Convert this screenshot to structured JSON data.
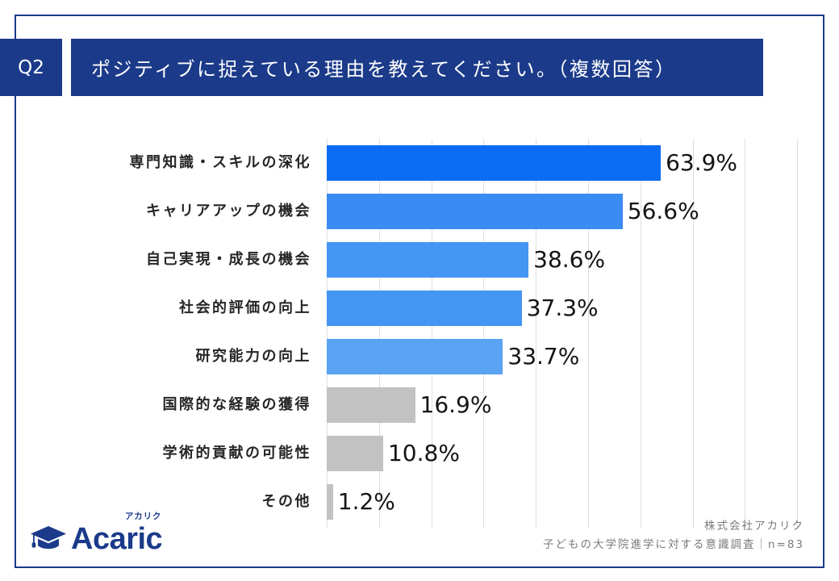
{
  "header": {
    "question_label": "Q2"
  },
  "chart_data": {
    "type": "bar",
    "orientation": "horizontal",
    "title": "ポジティブに捉えている理由を教えてください。（複数回答）",
    "categories": [
      "専門知識・スキルの深化",
      "キャリアアップの機会",
      "自己実現・成長の機会",
      "社会的評価の向上",
      "研究能力の向上",
      "国際的な経験の獲得",
      "学術的貢献の可能性",
      "その他"
    ],
    "values": [
      63.9,
      56.6,
      38.6,
      37.3,
      33.7,
      16.9,
      10.8,
      1.2
    ],
    "value_labels": [
      "63.9%",
      "56.6%",
      "38.6%",
      "37.3%",
      "33.7%",
      "16.9%",
      "10.8%",
      "1.2%"
    ],
    "colors": [
      "#0a6cf2",
      "#3a8cf3",
      "#4595f2",
      "#4595f2",
      "#5aa2f2",
      "#c2c2c2",
      "#c2c2c2",
      "#c2c2c2"
    ],
    "xlabel": "",
    "ylabel": "",
    "xlim": [
      0,
      90
    ],
    "grid": true,
    "grid_step": 10,
    "legend": false
  },
  "footer": {
    "company": "株式会社アカリク",
    "survey": "子どもの大学院進学に対する意識調査｜n=83"
  },
  "logo": {
    "icon": "graduation-cap-icon",
    "wordmark": "Acaric",
    "kana": "アカリク"
  },
  "theme": {
    "navy": "#1b3a8a",
    "gridline": "#dedede",
    "muted_text": "#7a7a7a"
  }
}
